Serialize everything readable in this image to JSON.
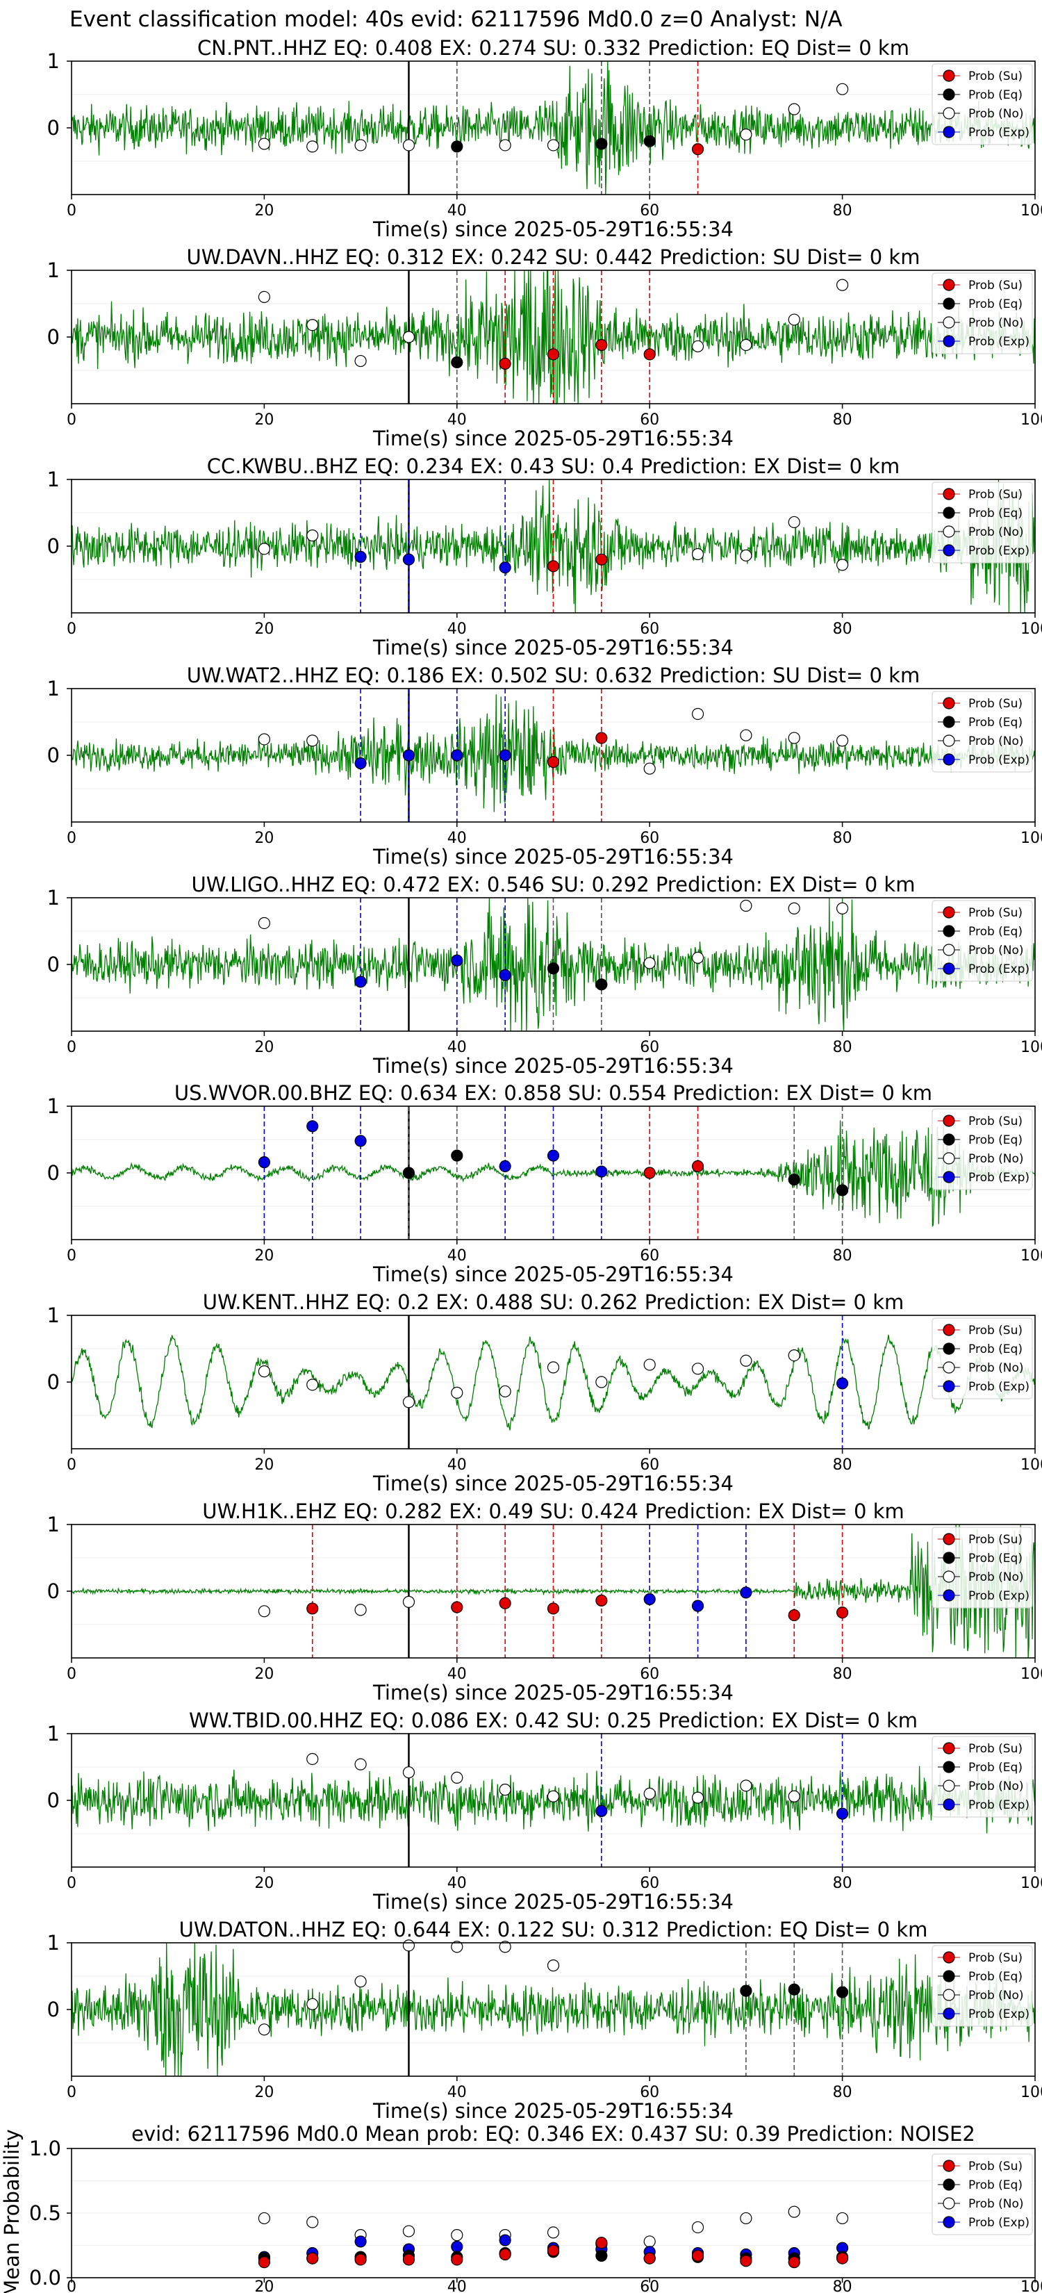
{
  "figure_title": "Event classification model: 40s evid: 62117596 Md0.0 z=0 Analyst: N/A",
  "legend_labels": [
    "Prob (Su)",
    "Prob (Eq)",
    "Prob (No)",
    "Prob (Exp)"
  ],
  "colors": {
    "su": "#e00000",
    "eq": "#000000",
    "no": "#ffffff",
    "exp": "#0000e0",
    "wave": "#008000"
  },
  "chart_data": [
    {
      "type": "line",
      "title": "CN.PNT..HHZ    EQ: 0.408   EX: 0.274   SU: 0.332    Prediction: EQ     Dist= 0 km",
      "xlabel": "Time(s) since 2025-05-29T16:55:34",
      "xlim": [
        0,
        100
      ],
      "ylim": [
        -1,
        1
      ],
      "x_ticks": [
        "0",
        "20",
        "40",
        "60",
        "80",
        "100"
      ],
      "y_ticks": [
        "1",
        "0"
      ],
      "arrival_line_x": 35,
      "points": [
        {
          "x": 20,
          "p": 0.38,
          "c": "no"
        },
        {
          "x": 25,
          "p": 0.36,
          "c": "no"
        },
        {
          "x": 30,
          "p": 0.37,
          "c": "no"
        },
        {
          "x": 35,
          "p": 0.37,
          "c": "no"
        },
        {
          "x": 40,
          "p": 0.36,
          "c": "eq"
        },
        {
          "x": 45,
          "p": 0.37,
          "c": "no"
        },
        {
          "x": 50,
          "p": 0.37,
          "c": "no"
        },
        {
          "x": 55,
          "p": 0.38,
          "c": "eq"
        },
        {
          "x": 60,
          "p": 0.4,
          "c": "eq"
        },
        {
          "x": 65,
          "p": 0.34,
          "c": "su"
        },
        {
          "x": 70,
          "p": 0.45,
          "c": "no"
        },
        {
          "x": 75,
          "p": 0.64,
          "c": "no"
        },
        {
          "x": 80,
          "p": 0.79,
          "c": "no"
        }
      ]
    },
    {
      "type": "line",
      "title": "UW.DAVN..HHZ   EQ: 0.312  EX: 0.242  SU: 0.442   Prediction: SU    Dist= 0 km",
      "xlabel": "Time(s) since 2025-05-29T16:55:34",
      "xlim": [
        0,
        100
      ],
      "ylim": [
        -1,
        1
      ],
      "x_ticks": [
        "0",
        "20",
        "40",
        "60",
        "80",
        "100"
      ],
      "y_ticks": [
        "1",
        "0"
      ],
      "arrival_line_x": 35,
      "points": [
        {
          "x": 20,
          "p": 0.8,
          "c": "no"
        },
        {
          "x": 25,
          "p": 0.59,
          "c": "no"
        },
        {
          "x": 30,
          "p": 0.32,
          "c": "no"
        },
        {
          "x": 35,
          "p": 0.5,
          "c": "no"
        },
        {
          "x": 40,
          "p": 0.31,
          "c": "eq"
        },
        {
          "x": 45,
          "p": 0.3,
          "c": "su"
        },
        {
          "x": 50,
          "p": 0.37,
          "c": "su"
        },
        {
          "x": 55,
          "p": 0.44,
          "c": "su"
        },
        {
          "x": 60,
          "p": 0.37,
          "c": "su"
        },
        {
          "x": 65,
          "p": 0.43,
          "c": "no"
        },
        {
          "x": 70,
          "p": 0.44,
          "c": "no"
        },
        {
          "x": 75,
          "p": 0.63,
          "c": "no"
        },
        {
          "x": 80,
          "p": 0.89,
          "c": "no"
        }
      ]
    },
    {
      "type": "line",
      "title": "CC.KWBU..BHZ    EQ: 0.234   EX: 0.43   SU: 0.4    Prediction: EX     Dist= 0 km",
      "xlabel": "Time(s) since 2025-05-29T16:55:34",
      "xlim": [
        0,
        100
      ],
      "ylim": [
        -1,
        1
      ],
      "x_ticks": [
        "0",
        "20",
        "40",
        "60",
        "80",
        "100"
      ],
      "y_ticks": [
        "1",
        "0"
      ],
      "arrival_line_x": 35,
      "points": [
        {
          "x": 20,
          "p": 0.48,
          "c": "no"
        },
        {
          "x": 25,
          "p": 0.58,
          "c": "no"
        },
        {
          "x": 30,
          "p": 0.42,
          "c": "exp"
        },
        {
          "x": 35,
          "p": 0.4,
          "c": "exp"
        },
        {
          "x": 45,
          "p": 0.34,
          "c": "exp"
        },
        {
          "x": 50,
          "p": 0.35,
          "c": "su"
        },
        {
          "x": 55,
          "p": 0.4,
          "c": "su"
        },
        {
          "x": 65,
          "p": 0.44,
          "c": "no"
        },
        {
          "x": 70,
          "p": 0.43,
          "c": "no"
        },
        {
          "x": 75,
          "p": 0.68,
          "c": "no"
        },
        {
          "x": 80,
          "p": 0.36,
          "c": "no"
        }
      ]
    },
    {
      "type": "line",
      "title": "UW.WAT2..HHZ    EQ: 0.186   EX: 0.502   SU: 0.632    Prediction: SU     Dist= 0 km",
      "xlabel": "Time(s) since 2025-05-29T16:55:34",
      "xlim": [
        0,
        100
      ],
      "ylim": [
        -1,
        1
      ],
      "x_ticks": [
        "0",
        "20",
        "40",
        "60",
        "80",
        "100"
      ],
      "y_ticks": [
        "1",
        "0"
      ],
      "arrival_line_x": 35,
      "points": [
        {
          "x": 20,
          "p": 0.62,
          "c": "no"
        },
        {
          "x": 25,
          "p": 0.61,
          "c": "no"
        },
        {
          "x": 30,
          "p": 0.44,
          "c": "exp"
        },
        {
          "x": 35,
          "p": 0.5,
          "c": "exp"
        },
        {
          "x": 40,
          "p": 0.5,
          "c": "exp"
        },
        {
          "x": 45,
          "p": 0.5,
          "c": "exp"
        },
        {
          "x": 50,
          "p": 0.45,
          "c": "su"
        },
        {
          "x": 55,
          "p": 0.63,
          "c": "su"
        },
        {
          "x": 60,
          "p": 0.4,
          "c": "no"
        },
        {
          "x": 65,
          "p": 0.81,
          "c": "no"
        },
        {
          "x": 70,
          "p": 0.65,
          "c": "no"
        },
        {
          "x": 75,
          "p": 0.63,
          "c": "no"
        },
        {
          "x": 80,
          "p": 0.61,
          "c": "no"
        }
      ]
    },
    {
      "type": "line",
      "title": "UW.LIGO..HHZ   EQ: 0.472   EX: 0.546   SU: 0.292    Prediction: EX     Dist= 0 km",
      "xlabel": "Time(s) since 2025-05-29T16:55:34",
      "xlim": [
        0,
        100
      ],
      "ylim": [
        -1,
        1
      ],
      "x_ticks": [
        "0",
        "20",
        "40",
        "60",
        "80",
        "100"
      ],
      "y_ticks": [
        "1",
        "0"
      ],
      "arrival_line_x": 35,
      "points": [
        {
          "x": 20,
          "p": 0.81,
          "c": "no"
        },
        {
          "x": 30,
          "p": 0.37,
          "c": "exp"
        },
        {
          "x": 40,
          "p": 0.53,
          "c": "exp"
        },
        {
          "x": 45,
          "p": 0.42,
          "c": "exp"
        },
        {
          "x": 50,
          "p": 0.47,
          "c": "eq"
        },
        {
          "x": 55,
          "p": 0.35,
          "c": "eq"
        },
        {
          "x": 60,
          "p": 0.51,
          "c": "no"
        },
        {
          "x": 65,
          "p": 0.55,
          "c": "no"
        },
        {
          "x": 70,
          "p": 0.94,
          "c": "no"
        },
        {
          "x": 75,
          "p": 0.92,
          "c": "no"
        },
        {
          "x": 80,
          "p": 0.92,
          "c": "no"
        }
      ]
    },
    {
      "type": "line",
      "title": "US.WVOR.00.BHZ    EQ: 0.634   EX: 0.858   SU: 0.554    Prediction: EX     Dist= 0 km",
      "xlabel": "Time(s) since 2025-05-29T16:55:34",
      "xlim": [
        0,
        100
      ],
      "ylim": [
        -1,
        1
      ],
      "x_ticks": [
        "0",
        "20",
        "40",
        "60",
        "80",
        "100"
      ],
      "y_ticks": [
        "1",
        "0"
      ],
      "arrival_line_x": 35,
      "points": [
        {
          "x": 20,
          "p": 0.58,
          "c": "exp"
        },
        {
          "x": 25,
          "p": 0.85,
          "c": "exp"
        },
        {
          "x": 30,
          "p": 0.74,
          "c": "exp"
        },
        {
          "x": 35,
          "p": 0.5,
          "c": "eq"
        },
        {
          "x": 40,
          "p": 0.63,
          "c": "eq"
        },
        {
          "x": 45,
          "p": 0.55,
          "c": "exp"
        },
        {
          "x": 50,
          "p": 0.63,
          "c": "exp"
        },
        {
          "x": 55,
          "p": 0.51,
          "c": "exp"
        },
        {
          "x": 60,
          "p": 0.5,
          "c": "su"
        },
        {
          "x": 65,
          "p": 0.55,
          "c": "su"
        },
        {
          "x": 75,
          "p": 0.45,
          "c": "eq"
        },
        {
          "x": 80,
          "p": 0.37,
          "c": "eq"
        }
      ]
    },
    {
      "type": "line",
      "title": "UW.KENT..HHZ    EQ: 0.2   EX: 0.488   SU: 0.262    Prediction: EX     Dist= 0 km",
      "xlabel": "Time(s) since 2025-05-29T16:55:34",
      "xlim": [
        0,
        100
      ],
      "ylim": [
        -1,
        1
      ],
      "x_ticks": [
        "0",
        "20",
        "40",
        "60",
        "80",
        "100"
      ],
      "y_ticks": [
        "1",
        "0"
      ],
      "arrival_line_x": 35,
      "points": [
        {
          "x": 20,
          "p": 0.58,
          "c": "no"
        },
        {
          "x": 25,
          "p": 0.48,
          "c": "no"
        },
        {
          "x": 35,
          "p": 0.35,
          "c": "no"
        },
        {
          "x": 40,
          "p": 0.42,
          "c": "no"
        },
        {
          "x": 45,
          "p": 0.43,
          "c": "no"
        },
        {
          "x": 50,
          "p": 0.61,
          "c": "no"
        },
        {
          "x": 55,
          "p": 0.5,
          "c": "no"
        },
        {
          "x": 60,
          "p": 0.63,
          "c": "no"
        },
        {
          "x": 65,
          "p": 0.6,
          "c": "no"
        },
        {
          "x": 70,
          "p": 0.66,
          "c": "no"
        },
        {
          "x": 75,
          "p": 0.7,
          "c": "no"
        },
        {
          "x": 80,
          "p": 0.49,
          "c": "exp"
        }
      ]
    },
    {
      "type": "line",
      "title": "UW.H1K..EHZ   EQ: 0.282   EX: 0.49   SU: 0.424    Prediction: EX     Dist= 0 km",
      "xlabel": "Time(s) since 2025-05-29T16:55:34",
      "xlim": [
        0,
        100
      ],
      "ylim": [
        -1,
        1
      ],
      "x_ticks": [
        "0",
        "20",
        "40",
        "60",
        "80",
        "100"
      ],
      "y_ticks": [
        "1",
        "0"
      ],
      "arrival_line_x": 35,
      "points": [
        {
          "x": 20,
          "p": 0.35,
          "c": "no"
        },
        {
          "x": 25,
          "p": 0.37,
          "c": "su"
        },
        {
          "x": 30,
          "p": 0.36,
          "c": "no"
        },
        {
          "x": 35,
          "p": 0.42,
          "c": "no"
        },
        {
          "x": 40,
          "p": 0.38,
          "c": "su"
        },
        {
          "x": 45,
          "p": 0.41,
          "c": "su"
        },
        {
          "x": 50,
          "p": 0.37,
          "c": "su"
        },
        {
          "x": 55,
          "p": 0.43,
          "c": "su"
        },
        {
          "x": 60,
          "p": 0.44,
          "c": "exp"
        },
        {
          "x": 65,
          "p": 0.39,
          "c": "exp"
        },
        {
          "x": 70,
          "p": 0.49,
          "c": "exp"
        },
        {
          "x": 75,
          "p": 0.32,
          "c": "su"
        },
        {
          "x": 80,
          "p": 0.34,
          "c": "su"
        }
      ]
    },
    {
      "type": "line",
      "title": "WW.TBID.00.HHZ   EQ: 0.086   EX: 0.42   SU: 0.25    Prediction: EX     Dist= 0 km",
      "xlabel": "Time(s) since 2025-05-29T16:55:34",
      "xlim": [
        0,
        100
      ],
      "ylim": [
        -1,
        1
      ],
      "x_ticks": [
        "0",
        "20",
        "40",
        "60",
        "80",
        "100"
      ],
      "y_ticks": [
        "1",
        "0"
      ],
      "arrival_line_x": 35,
      "points": [
        {
          "x": 25,
          "p": 0.81,
          "c": "no"
        },
        {
          "x": 30,
          "p": 0.77,
          "c": "no"
        },
        {
          "x": 35,
          "p": 0.71,
          "c": "no"
        },
        {
          "x": 40,
          "p": 0.67,
          "c": "no"
        },
        {
          "x": 45,
          "p": 0.58,
          "c": "no"
        },
        {
          "x": 50,
          "p": 0.53,
          "c": "no"
        },
        {
          "x": 55,
          "p": 0.42,
          "c": "exp"
        },
        {
          "x": 60,
          "p": 0.55,
          "c": "no"
        },
        {
          "x": 65,
          "p": 0.52,
          "c": "no"
        },
        {
          "x": 70,
          "p": 0.61,
          "c": "no"
        },
        {
          "x": 75,
          "p": 0.53,
          "c": "no"
        },
        {
          "x": 80,
          "p": 0.4,
          "c": "exp"
        }
      ]
    },
    {
      "type": "line",
      "title": "UW.DATON..HHZ    EQ: 0.644   EX: 0.122   SU: 0.312    Prediction: EQ     Dist= 0 km",
      "xlabel": "Time(s) since 2025-05-29T16:55:34",
      "xlim": [
        0,
        100
      ],
      "ylim": [
        -1,
        1
      ],
      "x_ticks": [
        "0",
        "20",
        "40",
        "60",
        "80",
        "100"
      ],
      "y_ticks": [
        "1",
        "0"
      ],
      "arrival_line_x": 35,
      "points": [
        {
          "x": 20,
          "p": 0.35,
          "c": "no"
        },
        {
          "x": 25,
          "p": 0.54,
          "c": "no"
        },
        {
          "x": 30,
          "p": 0.71,
          "c": "no"
        },
        {
          "x": 35,
          "p": 0.98,
          "c": "no"
        },
        {
          "x": 40,
          "p": 0.97,
          "c": "no"
        },
        {
          "x": 45,
          "p": 0.97,
          "c": "no"
        },
        {
          "x": 50,
          "p": 0.83,
          "c": "no"
        },
        {
          "x": 70,
          "p": 0.64,
          "c": "eq"
        },
        {
          "x": 75,
          "p": 0.65,
          "c": "eq"
        },
        {
          "x": 80,
          "p": 0.63,
          "c": "eq"
        }
      ]
    },
    {
      "type": "scatter",
      "title": "evid: 62117596  Md0.0   Mean prob:    EQ: 0.346  EX: 0.437  SU: 0.39   Prediction: NOISE2",
      "ylabel": "Mean Probability",
      "xlim": [
        0,
        100
      ],
      "ylim": [
        0,
        1
      ],
      "x_ticks": [
        "0",
        "20",
        "40",
        "60",
        "80",
        "100"
      ],
      "y_ticks": [
        "1.0",
        "0.5",
        "0.0"
      ],
      "x": [
        20,
        25,
        30,
        35,
        40,
        45,
        50,
        55,
        60,
        65,
        70,
        75,
        80
      ],
      "series": [
        {
          "c": "no",
          "values": [
            0.46,
            0.43,
            0.33,
            0.36,
            0.33,
            0.33,
            0.35,
            0.26,
            0.28,
            0.39,
            0.46,
            0.51,
            0.46
          ]
        },
        {
          "c": "exp",
          "values": [
            0.16,
            0.19,
            0.28,
            0.22,
            0.24,
            0.29,
            0.23,
            0.22,
            0.2,
            0.19,
            0.18,
            0.19,
            0.23
          ]
        },
        {
          "c": "eq",
          "values": [
            0.15,
            0.15,
            0.16,
            0.17,
            0.16,
            0.19,
            0.2,
            0.17,
            0.15,
            0.16,
            0.15,
            0.15,
            0.16
          ]
        },
        {
          "c": "su",
          "values": [
            0.12,
            0.15,
            0.14,
            0.14,
            0.14,
            0.18,
            0.21,
            0.27,
            0.15,
            0.17,
            0.13,
            0.12,
            0.15
          ]
        }
      ]
    }
  ]
}
